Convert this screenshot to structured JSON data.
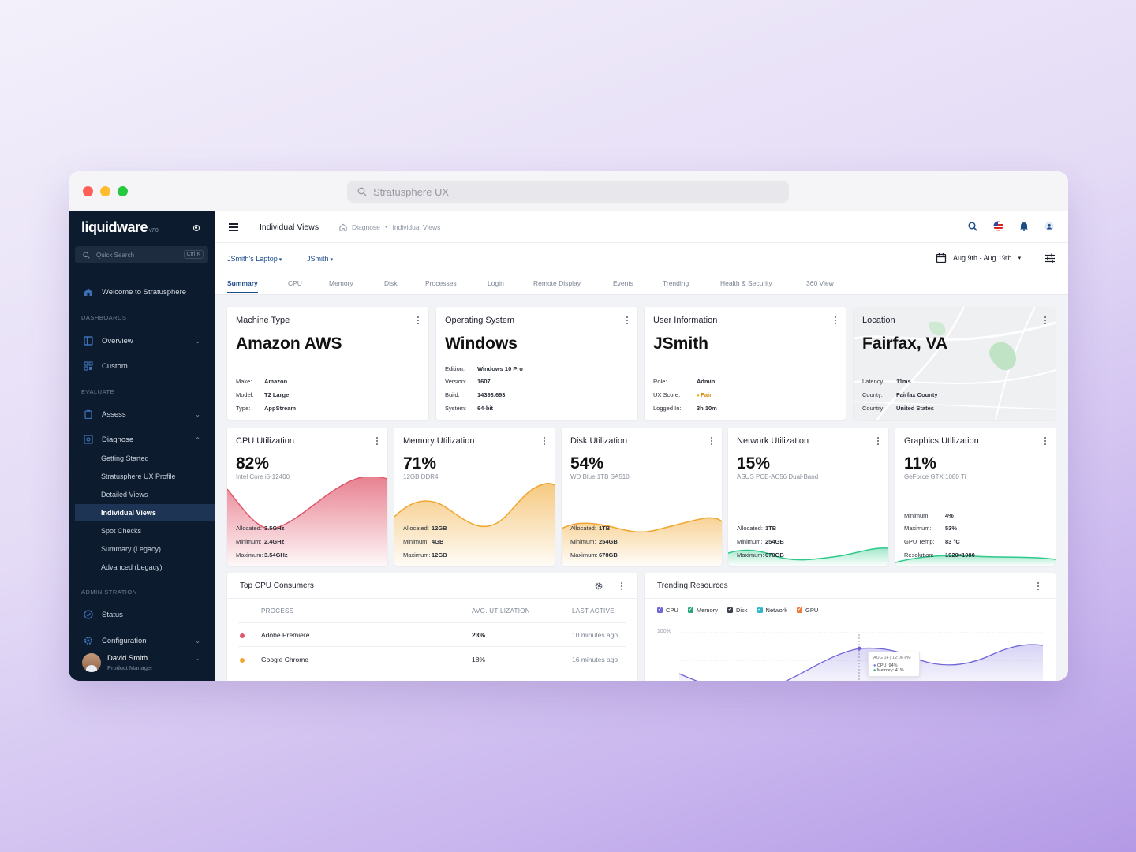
{
  "browser": {
    "address": "Stratusphere UX"
  },
  "sidebar": {
    "logo": "liquidware",
    "version": "v7.0",
    "search_placeholder": "Quick Search",
    "search_shortcut": "Ctrl K",
    "welcome": "Welcome to Stratusphere",
    "sections": {
      "dashboards": "DASHBOARDS",
      "evaluate": "EVALUATE",
      "administration": "ADMINISTRATION"
    },
    "items": {
      "overview": "Overview",
      "custom": "Custom",
      "assess": "Assess",
      "diagnose": "Diagnose",
      "status": "Status",
      "configuration": "Configuration"
    },
    "diagnose_sub": [
      "Getting Started",
      "Stratusphere UX Profile",
      "Detailed Views",
      "Individual Views",
      "Spot Checks",
      "Summary (Legacy)",
      "Advanced (Legacy)"
    ],
    "user": {
      "name": "David Smith",
      "role": "Product Manager"
    }
  },
  "header": {
    "title": "Individual Views",
    "breadcrumb": [
      "Diagnose",
      "Individual Views"
    ],
    "machine_selector": "JSmith's Laptop",
    "user_selector": "JSmith",
    "date_range": "Aug 9th - Aug 19th"
  },
  "tabs": [
    "Summary",
    "CPU",
    "Memory",
    "Disk",
    "Processes",
    "Login",
    "Remote Display",
    "Events",
    "Trending",
    "Health & Security",
    "360 View"
  ],
  "info_cards": [
    {
      "title": "Machine Type",
      "value": "Amazon AWS",
      "rows": [
        [
          "Make:",
          "Amazon"
        ],
        [
          "Model:",
          "T2 Large"
        ],
        [
          "Type:",
          "AppStream"
        ]
      ]
    },
    {
      "title": "Operating System",
      "value": "Windows",
      "rows": [
        [
          "Edition:",
          "Windows 10 Pro"
        ],
        [
          "Version:",
          "1607"
        ],
        [
          "Build:",
          "14393.693"
        ],
        [
          "System:",
          "64-bit"
        ]
      ]
    },
    {
      "title": "User Information",
      "value": "JSmith",
      "rows": [
        [
          "Role:",
          "Admin"
        ],
        [
          "UX Score:",
          "Fair"
        ],
        [
          "Logged In:",
          "3h 10m"
        ]
      ]
    },
    {
      "title": "Location",
      "value": "Fairfax, VA",
      "rows": [
        [
          "Latency:",
          "11ms"
        ],
        [
          "County:",
          "Fairfax County"
        ],
        [
          "Country:",
          "United States"
        ]
      ]
    }
  ],
  "util_cards": [
    {
      "title": "CPU Utilization",
      "pct": "82%",
      "sub": "Intel Core i5-12400",
      "color": "#e0576b",
      "rows": [
        [
          "Allocated:",
          "3.5GHz"
        ],
        [
          "Minimum:",
          "2.4GHz"
        ],
        [
          "Maximum:",
          "3.54GHz"
        ]
      ]
    },
    {
      "title": "Memory Utilization",
      "pct": "71%",
      "sub": "12GB DDR4",
      "color": "#f0a52c",
      "rows": [
        [
          "Allocated:",
          "12GB"
        ],
        [
          "Minimum:",
          "4GB"
        ],
        [
          "Maximum:",
          "12GB"
        ]
      ]
    },
    {
      "title": "Disk Utilization",
      "pct": "54%",
      "sub": "WD Blue 1TB SA510",
      "color": "#f0a52c",
      "rows": [
        [
          "Allocated:",
          "1TB"
        ],
        [
          "Minimum:",
          "254GB"
        ],
        [
          "Maximum:",
          "678GB"
        ]
      ]
    },
    {
      "title": "Network Utilization",
      "pct": "15%",
      "sub": "ASUS PCE-AC56 Dual-Band",
      "color": "#2ec98a",
      "rows": [
        [
          "Allocated:",
          "1TB"
        ],
        [
          "Minimum:",
          "254GB"
        ],
        [
          "Maximum:",
          "678GB"
        ]
      ]
    },
    {
      "title": "Graphics Utilization",
      "pct": "11%",
      "sub": "GeForce GTX 1080 Ti",
      "color": "#2ec98a",
      "rows": [
        [
          "Minimum:",
          "4%"
        ],
        [
          "Maximum:",
          "53%"
        ],
        [
          "GPU Temp:",
          "83 °C"
        ],
        [
          "Resolution:",
          "1920×1080"
        ]
      ]
    }
  ],
  "top_cpu": {
    "title": "Top CPU Consumers",
    "columns": [
      "PROCESS",
      "AVG. UTILIZATION",
      "LAST ACTIVE"
    ],
    "rows": [
      {
        "process": "Adobe Premiere",
        "util": "23%",
        "last": "10 minutes ago",
        "color": "#e0576b"
      },
      {
        "process": "Google Chrome",
        "util": "18%",
        "last": "16 minutes ago",
        "color": "#f0a52c"
      }
    ]
  },
  "trending": {
    "title": "Trending Resources",
    "legend": [
      {
        "name": "CPU",
        "color": "#6e63d9"
      },
      {
        "name": "Memory",
        "color": "#2aa47a"
      },
      {
        "name": "Disk",
        "color": "#3a3f4a"
      },
      {
        "name": "Network",
        "color": "#2ab7c9"
      },
      {
        "name": "GPU",
        "color": "#ef7a3a"
      }
    ],
    "y_label": "100%",
    "tooltip": {
      "date": "AUG 14 | 12:06 PM",
      "cpu": "CPU: 94%",
      "memory": "Memory: 41%"
    }
  },
  "colors": {
    "accent": "#1b4c8a",
    "sidebar": "#0d1b2e",
    "fair": "#f0a52c"
  }
}
